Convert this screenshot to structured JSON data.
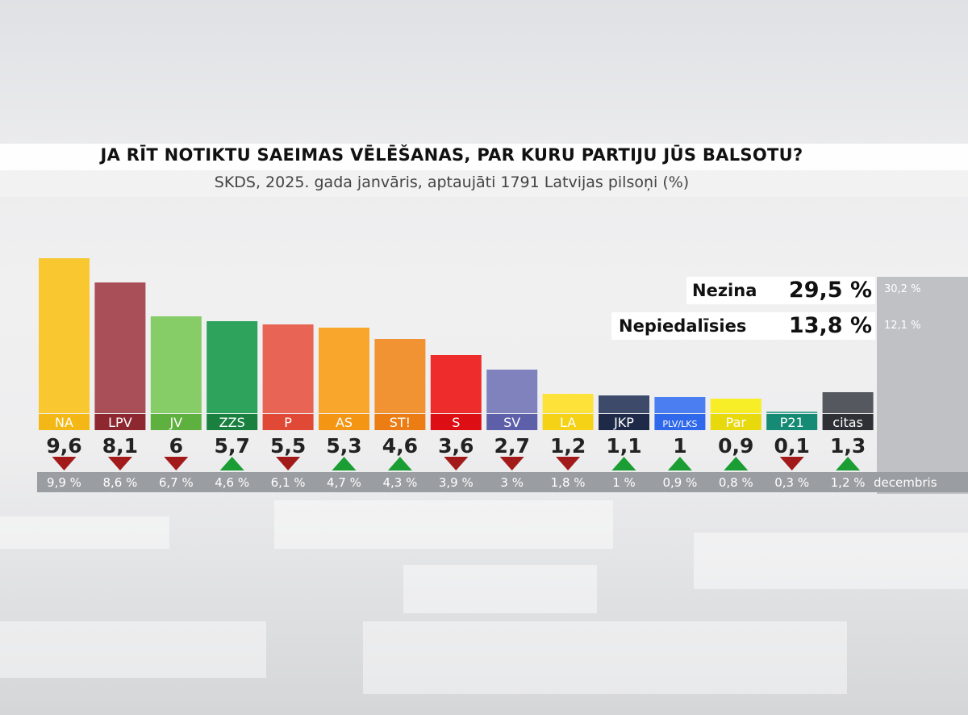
{
  "title": "JA RĪT NOTIKTU SAEIMAS VĒLĒŠANAS, PAR KURU PARTIJU JŪS BALSOTU?",
  "subtitle": "SKDS, 2025. gada janvāris, aptaujāti 1791 Latvijas pilsoņi (%)",
  "undecided": {
    "label": "Nezina",
    "value": "29,5 %",
    "previous": "30,2 %"
  },
  "nonvoters": {
    "label": "Nepiedalīsies",
    "value": "13,8 %",
    "previous": "12,1 %"
  },
  "previous_period_label": "decembris",
  "colors": {
    "up": "#1a9d32",
    "down": "#a31a1a",
    "prev_strip": "#9a9da2",
    "side_panel": "#bfc1c5"
  },
  "chart_data": {
    "type": "bar",
    "categories": [
      "NA",
      "LPV",
      "JV",
      "ZZS",
      "P",
      "AS",
      "ST!",
      "S",
      "SV",
      "LA",
      "JKP",
      "PLV/LKS",
      "Par",
      "P21",
      "citas"
    ],
    "values": [
      9.6,
      8.1,
      6,
      5.7,
      5.5,
      5.3,
      4.6,
      3.6,
      2.7,
      1.2,
      1.1,
      1,
      0.9,
      0.1,
      1.3
    ],
    "value_labels": [
      "9,6",
      "8,1",
      "6",
      "5,7",
      "5,5",
      "5,3",
      "4,6",
      "3,6",
      "2,7",
      "1,2",
      "1,1",
      "1",
      "0,9",
      "0,1",
      "1,3"
    ],
    "previous_values": [
      9.9,
      8.6,
      6.7,
      4.6,
      6.1,
      4.7,
      4.3,
      3.9,
      3,
      1.8,
      1,
      0.9,
      0.8,
      0.3,
      1.2
    ],
    "previous_labels": [
      "9,9 %",
      "8,6 %",
      "6,7 %",
      "4,6 %",
      "6,1 %",
      "4,7 %",
      "4,3 %",
      "3,9 %",
      "3 %",
      "1,8 %",
      "1 %",
      "0,9 %",
      "0,8 %",
      "0,3 %",
      "1,2 %"
    ],
    "trend": [
      "down",
      "down",
      "down",
      "up",
      "down",
      "up",
      "up",
      "down",
      "down",
      "down",
      "up",
      "up",
      "up",
      "down",
      "up"
    ],
    "bar_colors": [
      "#f9c72f",
      "#a94f57",
      "#86cc67",
      "#2ea35c",
      "#e86455",
      "#f9a62c",
      "#f29333",
      "#ee2c2c",
      "#8082bd",
      "#fde23a",
      "#3d4a6a",
      "#4b7ef0",
      "#f8ee28",
      "#48aa98",
      "#55585e"
    ],
    "label_colors": [
      "#f3b815",
      "#8e2830",
      "#5fb13f",
      "#19803f",
      "#e04935",
      "#f49514",
      "#ec7d14",
      "#dd0e14",
      "#5d60a8",
      "#f6d217",
      "#1e2a48",
      "#2f68ea",
      "#e7d90c",
      "#158a74",
      "#2e3036"
    ],
    "label_text_colors": [
      "#ffffff",
      "#ffffff",
      "#ffffff",
      "#ffffff",
      "#ffffff",
      "#ffffff",
      "#ffffff",
      "#ffffff",
      "#ffffff",
      "#ffffff",
      "#ffffff",
      "#ffffff",
      "#ffffff",
      "#ffffff",
      "#ffffff"
    ],
    "ylim": [
      0,
      10
    ],
    "xlabel": "",
    "ylabel": ""
  }
}
